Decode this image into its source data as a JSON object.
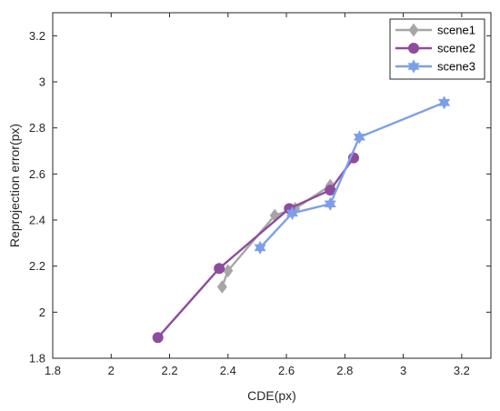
{
  "chart_data": {
    "type": "line",
    "xlabel": "CDE(px)",
    "ylabel": "Reprojection error(px)",
    "xlim": [
      1.8,
      3.3
    ],
    "ylim": [
      1.8,
      3.3
    ],
    "xticks": [
      "1.8",
      "2",
      "2.2",
      "2.4",
      "2.6",
      "2.8",
      "3",
      "3.2"
    ],
    "yticks": [
      "1.8",
      "2",
      "2.2",
      "2.4",
      "2.6",
      "2.8",
      "3",
      "3.2"
    ],
    "grid": false,
    "legend_position": "top-right",
    "series": [
      {
        "name": "scene1",
        "color": "#a6a6a6",
        "marker": "diamond",
        "points": [
          [
            2.38,
            2.11
          ],
          [
            2.4,
            2.18
          ],
          [
            2.56,
            2.42
          ],
          [
            2.63,
            2.45
          ],
          [
            2.75,
            2.55
          ]
        ]
      },
      {
        "name": "scene2",
        "color": "#8e4c9e",
        "marker": "circle",
        "points": [
          [
            2.16,
            1.89
          ],
          [
            2.37,
            2.19
          ],
          [
            2.61,
            2.45
          ],
          [
            2.75,
            2.53
          ],
          [
            2.83,
            2.67
          ]
        ]
      },
      {
        "name": "scene3",
        "color": "#7d9fea",
        "marker": "hexagram",
        "points": [
          [
            2.51,
            2.28
          ],
          [
            2.62,
            2.43
          ],
          [
            2.75,
            2.47
          ],
          [
            2.85,
            2.76
          ],
          [
            3.14,
            2.91
          ]
        ]
      }
    ]
  }
}
